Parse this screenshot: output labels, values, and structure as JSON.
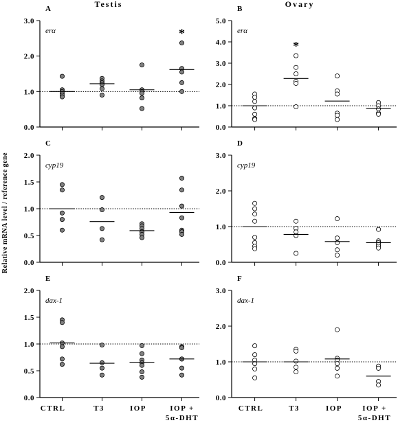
{
  "figure": {
    "column_titles": [
      "Testis",
      "Ovary"
    ],
    "y_axis_label": "Relative mRNA level / reference gene",
    "categories": [
      "CTRL",
      "T3",
      "IOP",
      "IOP +",
      "5α-DHT"
    ],
    "marker_colors": {
      "testis": "#808080",
      "ovary": "#ffffff"
    }
  },
  "chart_data": [
    {
      "type": "scatter",
      "panel": "A",
      "gene": "erα",
      "tissue": "Testis",
      "ylim": [
        0,
        3.0
      ],
      "yticks": [
        "0.0",
        "1.0",
        "2.0",
        "3.0"
      ],
      "reference_value": 1.0,
      "categories": [
        "CTRL",
        "T3",
        "IOP",
        "IOP + 5α-DHT"
      ],
      "means": [
        1.0,
        1.22,
        1.05,
        1.62
      ],
      "significance": [
        "",
        "",
        "",
        "*"
      ],
      "points": [
        [
          1.43,
          1.05,
          1.0,
          0.95,
          0.9,
          0.85
        ],
        [
          1.37,
          1.3,
          1.25,
          1.2,
          1.08,
          0.9
        ],
        [
          1.75,
          1.05,
          1.0,
          0.95,
          0.82,
          0.52
        ],
        [
          2.37,
          1.65,
          1.55,
          1.25,
          1.0
        ]
      ],
      "grid": false
    },
    {
      "type": "scatter",
      "panel": "B",
      "gene": "erα",
      "tissue": "Ovary",
      "ylim": [
        0,
        5.0
      ],
      "yticks": [
        "0.0",
        "1.0",
        "2.0",
        "3.0",
        "4.0",
        "5.0"
      ],
      "reference_value": 1.0,
      "categories": [
        "CTRL",
        "T3",
        "IOP",
        "IOP + 5α-DHT"
      ],
      "means": [
        1.0,
        2.28,
        1.22,
        0.87
      ],
      "significance": [
        "",
        "*",
        "",
        ""
      ],
      "points": [
        [
          1.55,
          1.4,
          1.2,
          0.9,
          0.6,
          0.4,
          0.35
        ],
        [
          3.35,
          2.8,
          2.5,
          2.15,
          2.05,
          0.95
        ],
        [
          2.4,
          1.7,
          1.55,
          0.65,
          0.55,
          0.35
        ],
        [
          1.15,
          1.0,
          0.85,
          0.65,
          0.6
        ]
      ],
      "grid": false
    },
    {
      "type": "scatter",
      "panel": "C",
      "gene": "cyp19",
      "tissue": "Testis",
      "ylim": [
        0,
        2.0
      ],
      "yticks": [
        "0.0",
        "0.5",
        "1.0",
        "1.5",
        "2.0"
      ],
      "reference_value": 1.0,
      "categories": [
        "CTRL",
        "T3",
        "IOP",
        "IOP + 5α-DHT"
      ],
      "means": [
        1.0,
        0.76,
        0.59,
        0.93
      ],
      "significance": [
        "",
        "",
        "",
        ""
      ],
      "points": [
        [
          1.45,
          1.35,
          0.92,
          0.8,
          0.6
        ],
        [
          1.21,
          0.98,
          0.63,
          0.42
        ],
        [
          0.72,
          0.68,
          0.63,
          0.57,
          0.52,
          0.46
        ],
        [
          1.57,
          1.35,
          1.05,
          0.83,
          0.6,
          0.57,
          0.52
        ]
      ],
      "grid": false
    },
    {
      "type": "scatter",
      "panel": "D",
      "gene": "cyp19",
      "tissue": "Ovary",
      "ylim": [
        0,
        3.0
      ],
      "yticks": [
        "0.0",
        "1.0",
        "2.0",
        "3.0"
      ],
      "reference_value": 1.0,
      "categories": [
        "CTRL",
        "T3",
        "IOP",
        "IOP + 5α-DHT"
      ],
      "means": [
        1.0,
        0.78,
        0.58,
        0.55
      ],
      "significance": [
        "",
        "",
        "",
        ""
      ],
      "points": [
        [
          1.65,
          1.5,
          1.35,
          1.15,
          0.7,
          0.55,
          0.45,
          0.38
        ],
        [
          1.15,
          0.95,
          0.85,
          0.75,
          0.25
        ],
        [
          1.22,
          0.68,
          0.55,
          0.35,
          0.2
        ],
        [
          0.92,
          0.6,
          0.55,
          0.5,
          0.45,
          0.4
        ]
      ],
      "grid": false
    },
    {
      "type": "scatter",
      "panel": "E",
      "gene": "dax-1",
      "tissue": "Testis",
      "ylim": [
        0,
        2.0
      ],
      "yticks": [
        "0.0",
        "0.5",
        "1.0",
        "1.5",
        "2.0"
      ],
      "reference_value": 1.0,
      "categories": [
        "CTRL",
        "T3",
        "IOP",
        "IOP + 5α-DHT"
      ],
      "means": [
        1.02,
        0.64,
        0.66,
        0.72
      ],
      "significance": [
        "",
        "",
        "",
        ""
      ],
      "points": [
        [
          1.45,
          1.4,
          1.02,
          0.95,
          0.72,
          0.62
        ],
        [
          0.98,
          0.65,
          0.55,
          0.42
        ],
        [
          0.97,
          0.82,
          0.7,
          0.65,
          0.6,
          0.48,
          0.38
        ],
        [
          0.95,
          0.93,
          0.72,
          0.72,
          0.55,
          0.42
        ]
      ],
      "grid": false
    },
    {
      "type": "scatter",
      "panel": "F",
      "gene": "dax-1",
      "tissue": "Ovary",
      "ylim": [
        0,
        3.0
      ],
      "yticks": [
        "0.0",
        "1.0",
        "2.0",
        "3.0"
      ],
      "reference_value": 1.0,
      "categories": [
        "CTRL",
        "T3",
        "IOP",
        "IOP + 5α-DHT"
      ],
      "means": [
        1.0,
        1.0,
        1.08,
        0.6
      ],
      "significance": [
        "",
        "",
        "",
        ""
      ],
      "points": [
        [
          1.45,
          1.2,
          1.05,
          0.95,
          0.8,
          0.55
        ],
        [
          1.35,
          1.3,
          1.02,
          0.85,
          0.72
        ],
        [
          1.9,
          1.1,
          1.05,
          0.95,
          0.82,
          0.6
        ],
        [
          0.88,
          0.82,
          0.45,
          0.35
        ]
      ],
      "grid": false
    }
  ]
}
